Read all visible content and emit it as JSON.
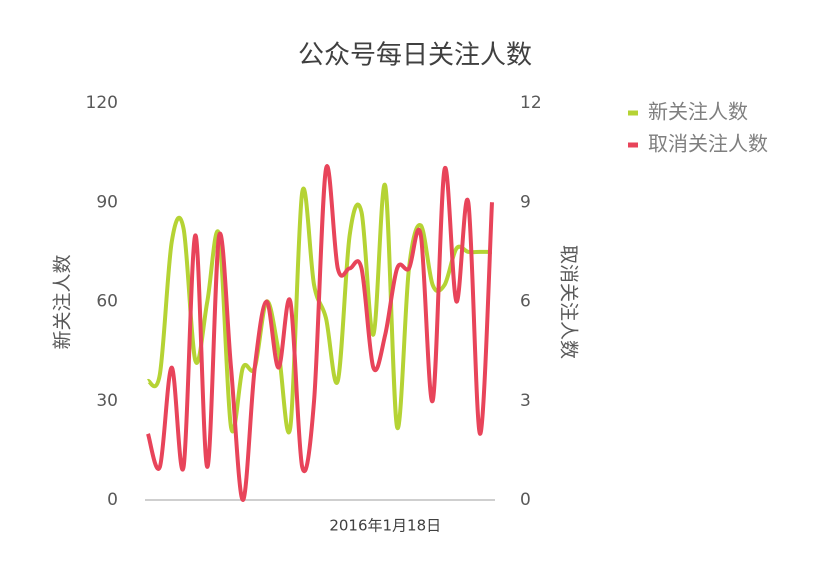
{
  "chart_data": {
    "type": "line",
    "title": "公众号每日关注人数",
    "categories": [
      null,
      null,
      null,
      null,
      null,
      null,
      null,
      null,
      null,
      null,
      null,
      null,
      null,
      null,
      null,
      null,
      null,
      null,
      null,
      null,
      "2016年1月18日",
      null,
      null,
      null,
      null,
      null,
      null,
      null,
      null,
      null
    ],
    "y_label": "新关注人数",
    "y2_label": "取消关注人数",
    "ylim": [
      0,
      120
    ],
    "yticks": [
      0,
      30,
      60,
      90,
      120
    ],
    "y2lim": [
      0,
      12
    ],
    "y2ticks": [
      0,
      3,
      6,
      9,
      12
    ],
    "smooth": true,
    "grid": false,
    "legend": "top-right",
    "series": [
      {
        "name": "新关注人数",
        "color": "#b5d334",
        "values": [
          36,
          38,
          78,
          82,
          42,
          60,
          80,
          22,
          40,
          40,
          60,
          45,
          22,
          93,
          65,
          55,
          36,
          80,
          87,
          50,
          95,
          22,
          70,
          83,
          65,
          65,
          76,
          75,
          75,
          75
        ]
      },
      {
        "name": "取消关注人数",
        "color": "#e8445a",
        "axis": "y2",
        "values": [
          2,
          1,
          4,
          1,
          8,
          1,
          8,
          4,
          0,
          4,
          6,
          4,
          6,
          1,
          3,
          10,
          7,
          7,
          7,
          4,
          5,
          7,
          7,
          8,
          3,
          10,
          6,
          9,
          2,
          9
        ]
      }
    ]
  }
}
